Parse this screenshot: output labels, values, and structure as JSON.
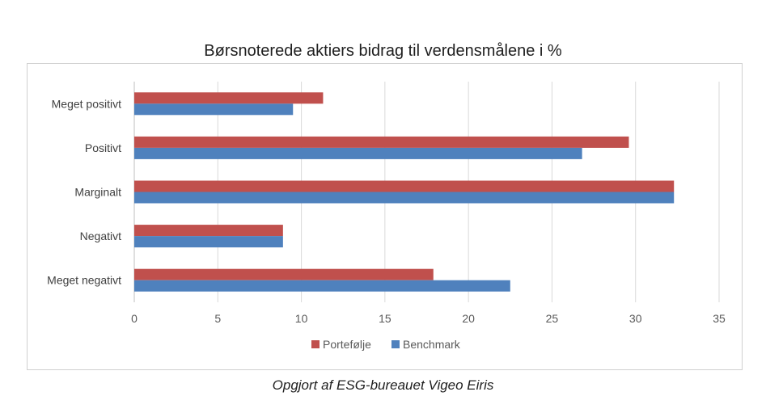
{
  "chart_data": {
    "type": "bar",
    "orientation": "horizontal",
    "title": "Børsnoterede aktiers bidrag til verdensmålene i %",
    "categories": [
      "Meget positivt",
      "Positivt",
      "Marginalt",
      "Negativt",
      "Meget negativt"
    ],
    "series": [
      {
        "name": "Portefølje",
        "color": "#c0504d",
        "values": [
          11.3,
          29.6,
          32.3,
          8.9,
          17.9
        ]
      },
      {
        "name": "Benchmark",
        "color": "#4f81bd",
        "values": [
          9.5,
          26.8,
          32.3,
          8.9,
          22.5
        ]
      }
    ],
    "xlim": [
      0,
      35
    ],
    "xticks": [
      0,
      5,
      10,
      15,
      20,
      25,
      30,
      35
    ],
    "grid": true,
    "legend_position": "bottom"
  },
  "caption": "Opgjort af ESG-bureauet Vigeo Eiris"
}
